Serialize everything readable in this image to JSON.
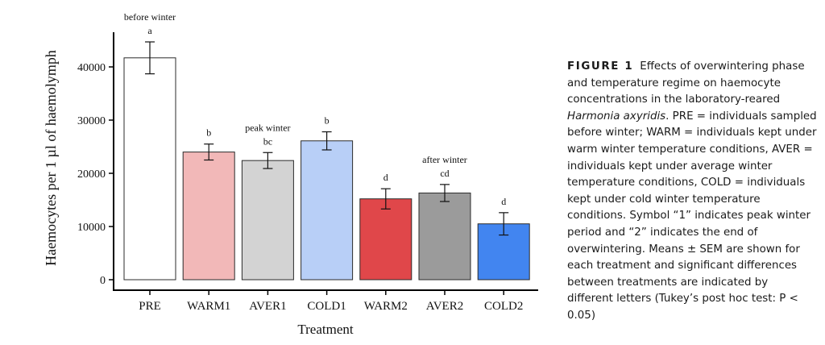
{
  "figure": {
    "label": "FIGURE 1",
    "caption_before_species": "Effects of overwintering phase and temperature regime on haemocyte concentrations in the laboratory-reared ",
    "caption_species": "Harmonia axyridis",
    "caption_after_species": ". PRE = individuals sampled before winter; WARM = individuals kept under warm winter temperature conditions, AVER = individuals kept under average winter temperature conditions, COLD = individuals kept under cold winter temperature conditions. Symbol “1” indicates peak winter period and “2” indicates the end of overwintering. Means ± SEM are shown for each treatment and significant differences between treatments are indicated by different letters (Tukey’s post hoc test: P < 0.05)"
  },
  "chart_data": {
    "type": "bar",
    "title": "",
    "xlabel": "Treatment",
    "ylabel": "Haemocytes per 1  µl of haemolymph",
    "ylim": [
      0,
      46000
    ],
    "yticks": [
      0,
      10000,
      20000,
      30000,
      40000
    ],
    "ytick_labels": [
      "0",
      "10000",
      "20000",
      "30000",
      "40000"
    ],
    "categories": [
      "PRE",
      "WARM1",
      "AVER1",
      "COLD1",
      "WARM2",
      "AVER2",
      "COLD2"
    ],
    "values": [
      41700,
      24000,
      22400,
      26100,
      15200,
      16300,
      10500
    ],
    "errors": [
      3000,
      1500,
      1500,
      1700,
      1900,
      1600,
      2100
    ],
    "bar_colors": [
      "#ffffff",
      "#f2b8b8",
      "#d3d3d3",
      "#b8cff7",
      "#e0474a",
      "#9b9b9b",
      "#4285f0"
    ],
    "significance_letters": [
      "a",
      "b",
      "bc",
      "b",
      "d",
      "cd",
      "d"
    ],
    "phase_labels": [
      {
        "category_index": 0,
        "text": "before winter"
      },
      {
        "category_index": 2,
        "text": "peak winter"
      },
      {
        "category_index": 5,
        "text": "after winter"
      }
    ],
    "error_bars": true,
    "grid": false,
    "legend": "none"
  }
}
